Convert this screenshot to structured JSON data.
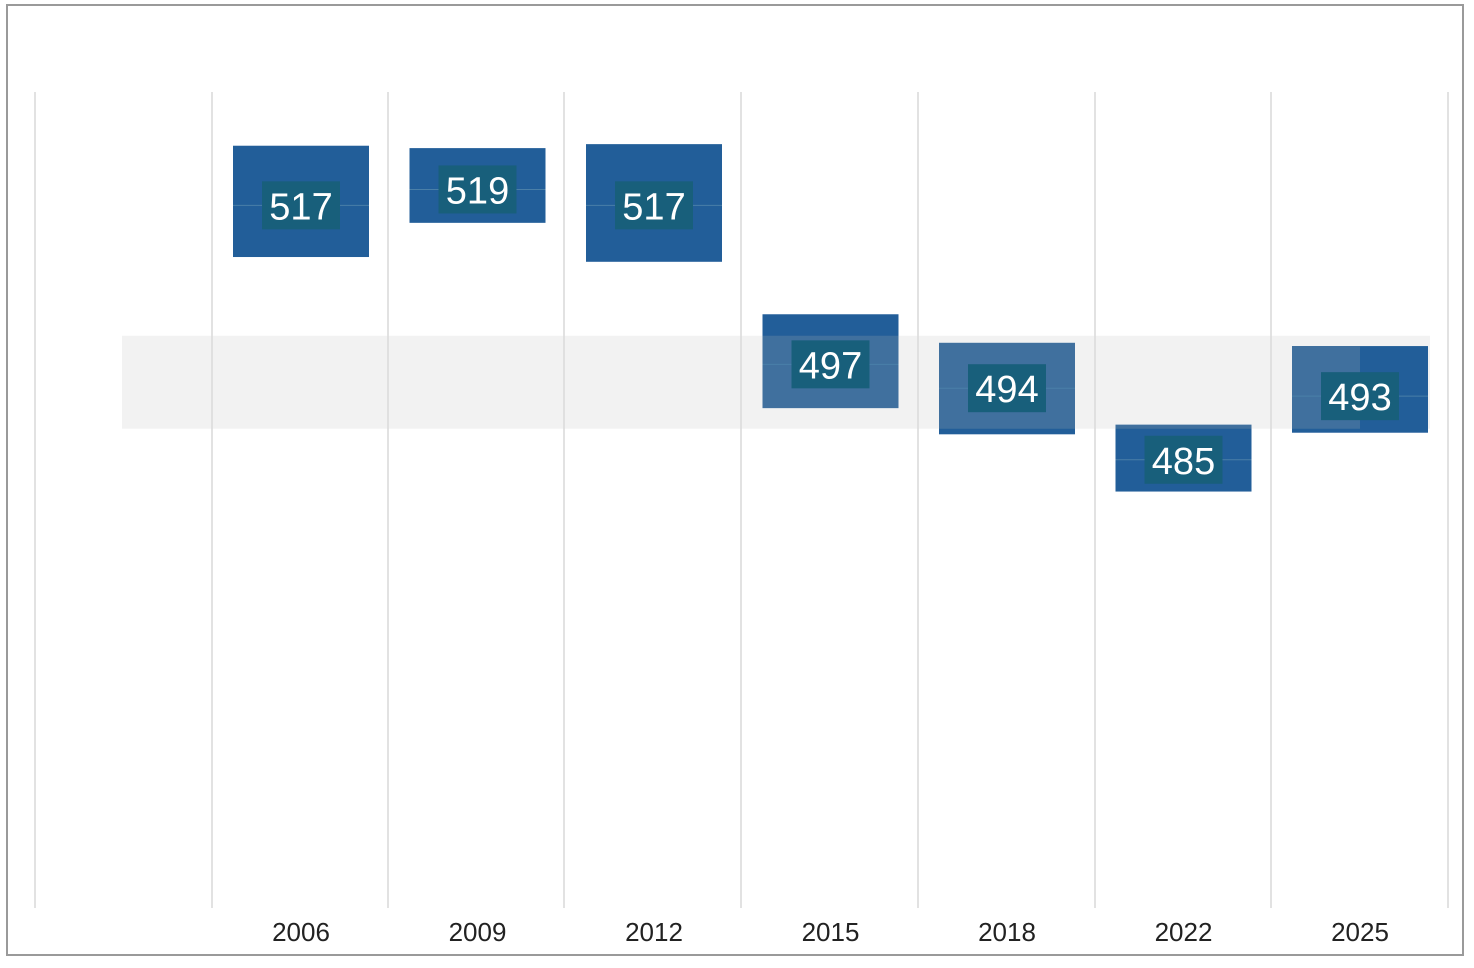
{
  "chart_data": {
    "type": "bar",
    "subtype": "floating-range",
    "title": "",
    "xlabel": "",
    "ylabel": "",
    "categories": [
      "2006",
      "2009",
      "2012",
      "2015",
      "2018",
      "2022",
      "2025"
    ],
    "values": [
      517,
      519,
      517,
      497,
      494,
      485,
      493
    ],
    "value_labels": [
      "517",
      "519",
      "517",
      "497",
      "494",
      "485",
      "493"
    ],
    "ranges": [
      [
        510.5,
        524.5
      ],
      [
        514.8,
        524.2
      ],
      [
        509.9,
        524.7
      ],
      [
        491.5,
        503.3
      ],
      [
        488.2,
        499.7
      ],
      [
        481.0,
        489.4
      ],
      [
        488.4,
        499.3
      ]
    ],
    "reference_band": [
      488.9,
      500.6
    ],
    "ylim": [
      450,
      530
    ],
    "grid": {
      "vertical": true,
      "horizontal": false
    },
    "legend": "none",
    "colors": {
      "bar": "#225e99",
      "bar_in_band": "#40709e",
      "label_box": "#185f7b",
      "band": "#f2f2f2",
      "grid": "#d9d9d9",
      "frame": "#9a9a9a"
    }
  }
}
